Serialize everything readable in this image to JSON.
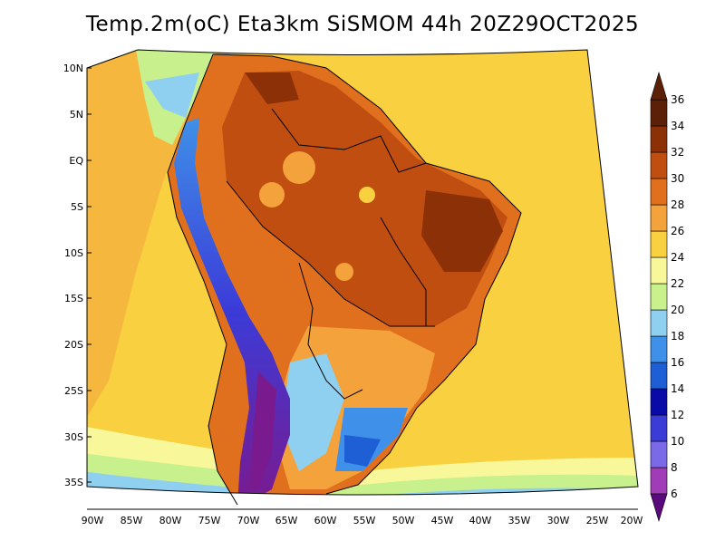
{
  "title": "Temp.2m(oC) Eta3km SiSMOM 44h 20Z29OCT2025",
  "lat_labels": [
    "10N",
    "5N",
    "EQ",
    "5S",
    "10S",
    "15S",
    "20S",
    "25S",
    "30S",
    "35S"
  ],
  "lon_labels": [
    "90W",
    "85W",
    "80W",
    "75W",
    "70W",
    "65W",
    "60W",
    "55W",
    "50W",
    "45W",
    "40W",
    "35W",
    "30W",
    "25W",
    "20W"
  ],
  "colorbar": {
    "labels": [
      "6",
      "8",
      "10",
      "12",
      "14",
      "16",
      "18",
      "20",
      "22",
      "24",
      "26",
      "28",
      "30",
      "32",
      "34",
      "36"
    ],
    "colors": [
      "#7a1a8f",
      "#a03cb8",
      "#7a6ae8",
      "#3b3bd8",
      "#0a0aa8",
      "#1f5fd6",
      "#3f90e8",
      "#8fd0f0",
      "#c8f08c",
      "#f8f89a",
      "#f8d040",
      "#f4a23c",
      "#e0701e",
      "#c04e10",
      "#8c3008",
      "#5c2008"
    ],
    "low_color": "#5a0a7a",
    "high_color": "#5c2008"
  }
}
